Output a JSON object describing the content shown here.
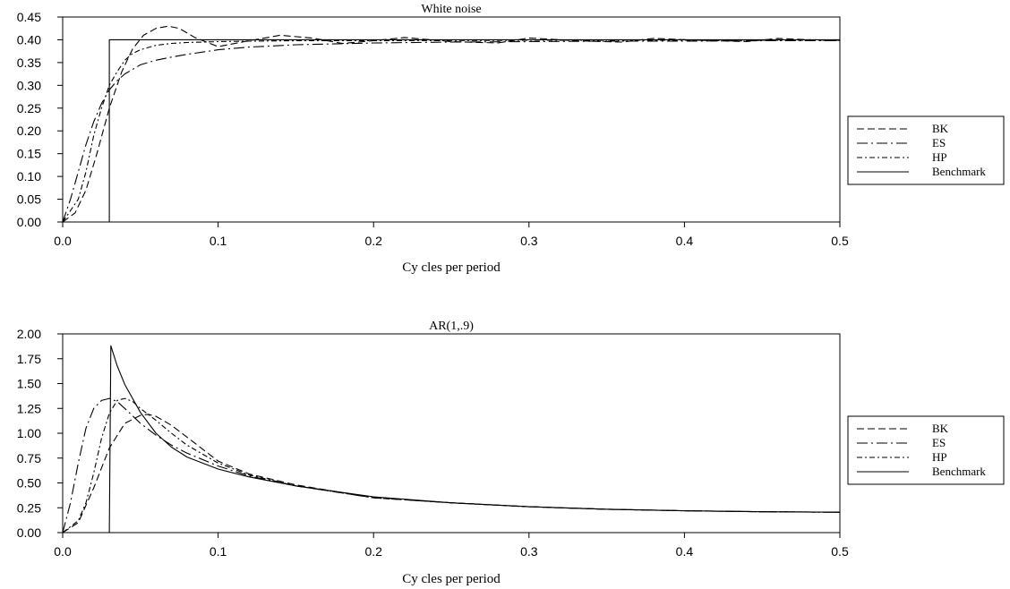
{
  "chart_data": [
    {
      "type": "line",
      "title": "White noise",
      "xlabel": "Cy cles per period",
      "ylabel": "",
      "xlim": [
        0,
        0.5
      ],
      "ylim": [
        0,
        0.45
      ],
      "xticks": [
        "0.0",
        "0.1",
        "0.2",
        "0.3",
        "0.4",
        "0.5"
      ],
      "xtick_values": [
        0,
        0.1,
        0.2,
        0.3,
        0.4,
        0.5
      ],
      "yticks": [
        "0.00",
        "0.05",
        "0.10",
        "0.15",
        "0.20",
        "0.25",
        "0.30",
        "0.35",
        "0.40",
        "0.45"
      ],
      "ytick_values": [
        0,
        0.05,
        0.1,
        0.15,
        0.2,
        0.25,
        0.3,
        0.35,
        0.4,
        0.45
      ],
      "grid": false,
      "legend_position": "right",
      "series": [
        {
          "name": "BK",
          "dash": "8,4",
          "x": [
            0,
            0.008,
            0.015,
            0.022,
            0.03,
            0.038,
            0.045,
            0.052,
            0.06,
            0.068,
            0.075,
            0.085,
            0.1,
            0.12,
            0.14,
            0.16,
            0.18,
            0.2,
            0.22,
            0.25,
            0.28,
            0.3,
            0.33,
            0.36,
            0.38,
            0.41,
            0.44,
            0.46,
            0.48,
            0.5
          ],
          "y": [
            0,
            0.02,
            0.07,
            0.15,
            0.25,
            0.33,
            0.38,
            0.41,
            0.425,
            0.43,
            0.425,
            0.405,
            0.385,
            0.398,
            0.41,
            0.404,
            0.392,
            0.398,
            0.405,
            0.396,
            0.393,
            0.404,
            0.398,
            0.395,
            0.403,
            0.399,
            0.396,
            0.403,
            0.4,
            0.398
          ]
        },
        {
          "name": "ES",
          "dash": "12,4,2,4",
          "x": [
            0,
            0.005,
            0.01,
            0.015,
            0.02,
            0.025,
            0.03,
            0.035,
            0.04,
            0.045,
            0.05,
            0.06,
            0.07,
            0.08,
            0.09,
            0.1,
            0.12,
            0.15,
            0.2,
            0.25,
            0.3,
            0.35,
            0.4,
            0.45,
            0.5
          ],
          "y": [
            0,
            0.05,
            0.11,
            0.17,
            0.22,
            0.26,
            0.29,
            0.31,
            0.325,
            0.335,
            0.345,
            0.355,
            0.362,
            0.368,
            0.373,
            0.378,
            0.384,
            0.389,
            0.393,
            0.395,
            0.396,
            0.397,
            0.397,
            0.398,
            0.398
          ]
        },
        {
          "name": "HP",
          "dash": "6,3,2,3",
          "x": [
            0,
            0.01,
            0.015,
            0.02,
            0.025,
            0.03,
            0.035,
            0.04,
            0.045,
            0.05,
            0.06,
            0.07,
            0.08,
            0.09,
            0.1,
            0.12,
            0.15,
            0.2,
            0.3,
            0.4,
            0.5
          ],
          "y": [
            0,
            0.05,
            0.11,
            0.19,
            0.25,
            0.3,
            0.33,
            0.355,
            0.37,
            0.378,
            0.388,
            0.392,
            0.394,
            0.395,
            0.396,
            0.397,
            0.398,
            0.398,
            0.399,
            0.399,
            0.399
          ]
        },
        {
          "name": "Benchmark",
          "dash": "",
          "x": [
            0,
            0.03,
            0.03,
            0.5
          ],
          "y": [
            0,
            0,
            0.4,
            0.4
          ]
        }
      ]
    },
    {
      "type": "line",
      "title": "AR(1,.9)",
      "xlabel": "Cy cles per period",
      "ylabel": "",
      "xlim": [
        0,
        0.5
      ],
      "ylim": [
        0,
        2
      ],
      "xticks": [
        "0.0",
        "0.1",
        "0.2",
        "0.3",
        "0.4",
        "0.5"
      ],
      "xtick_values": [
        0,
        0.1,
        0.2,
        0.3,
        0.4,
        0.5
      ],
      "yticks": [
        "0.00",
        "0.25",
        "0.50",
        "0.75",
        "1.00",
        "1.25",
        "1.50",
        "1.75",
        "2.00"
      ],
      "ytick_values": [
        0,
        0.25,
        0.5,
        0.75,
        1,
        1.25,
        1.5,
        1.75,
        2
      ],
      "grid": false,
      "legend_position": "right",
      "series": [
        {
          "name": "BK",
          "dash": "8,4",
          "x": [
            0,
            0.01,
            0.02,
            0.03,
            0.04,
            0.05,
            0.055,
            0.06,
            0.07,
            0.08,
            0.1,
            0.12,
            0.15,
            0.2,
            0.25,
            0.3,
            0.35,
            0.4,
            0.45,
            0.5
          ],
          "y": [
            0,
            0.1,
            0.45,
            0.85,
            1.1,
            1.18,
            1.19,
            1.17,
            1.08,
            0.96,
            0.72,
            0.59,
            0.48,
            0.35,
            0.3,
            0.26,
            0.235,
            0.22,
            0.21,
            0.205
          ]
        },
        {
          "name": "ES",
          "dash": "12,4,2,4",
          "x": [
            0,
            0.005,
            0.01,
            0.015,
            0.02,
            0.025,
            0.03,
            0.035,
            0.04,
            0.05,
            0.06,
            0.07,
            0.08,
            0.1,
            0.12,
            0.15,
            0.2,
            0.25,
            0.3,
            0.35,
            0.4,
            0.45,
            0.5
          ],
          "y": [
            0,
            0.3,
            0.7,
            1.05,
            1.25,
            1.33,
            1.35,
            1.32,
            1.25,
            1.1,
            0.98,
            0.88,
            0.8,
            0.67,
            0.57,
            0.47,
            0.35,
            0.3,
            0.26,
            0.235,
            0.22,
            0.21,
            0.205
          ]
        },
        {
          "name": "HP",
          "dash": "6,3,2,3",
          "x": [
            0,
            0.01,
            0.015,
            0.02,
            0.025,
            0.03,
            0.035,
            0.04,
            0.045,
            0.05,
            0.06,
            0.07,
            0.08,
            0.1,
            0.12,
            0.15,
            0.2,
            0.25,
            0.3,
            0.35,
            0.4,
            0.45,
            0.5
          ],
          "y": [
            0,
            0.12,
            0.3,
            0.6,
            0.95,
            1.2,
            1.33,
            1.35,
            1.32,
            1.25,
            1.13,
            1.0,
            0.88,
            0.7,
            0.58,
            0.47,
            0.35,
            0.3,
            0.26,
            0.235,
            0.22,
            0.21,
            0.205
          ]
        },
        {
          "name": "Benchmark",
          "dash": "",
          "x": [
            0,
            0.03,
            0.031,
            0.035,
            0.04,
            0.05,
            0.06,
            0.07,
            0.08,
            0.1,
            0.12,
            0.15,
            0.2,
            0.25,
            0.3,
            0.35,
            0.4,
            0.45,
            0.5
          ],
          "y": [
            0,
            0,
            1.88,
            1.68,
            1.49,
            1.21,
            1.0,
            0.86,
            0.76,
            0.64,
            0.56,
            0.47,
            0.36,
            0.3,
            0.26,
            0.235,
            0.22,
            0.21,
            0.205
          ]
        }
      ]
    }
  ]
}
